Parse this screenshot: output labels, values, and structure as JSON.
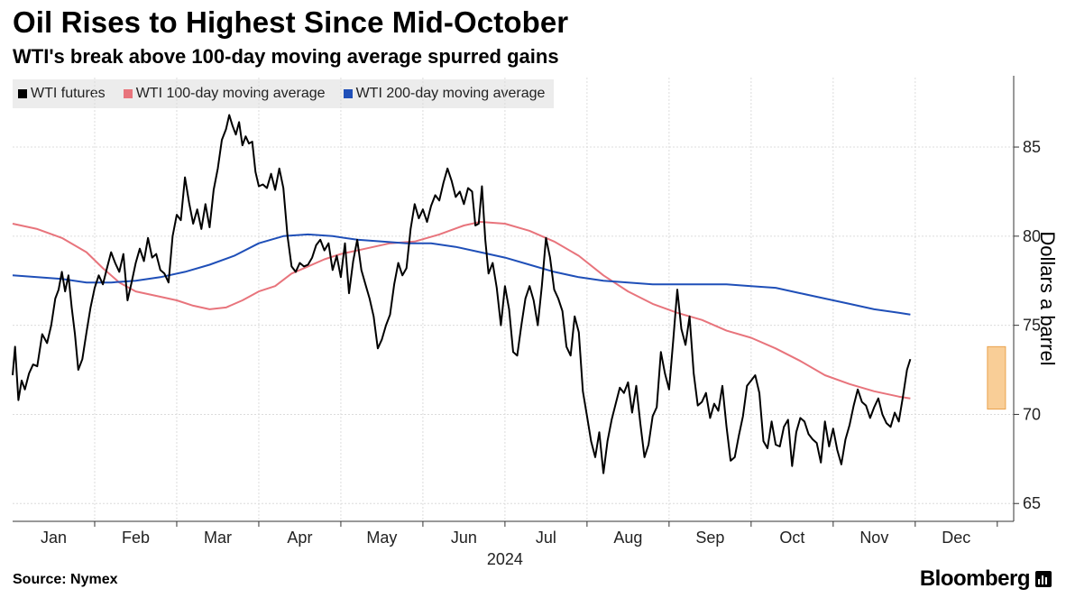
{
  "chart_data": {
    "type": "line",
    "title": "Oil Rises to Highest Since Mid-October",
    "subtitle": "WTI's break above 100-day moving average spurred gains",
    "ylabel": "Dollars a barrel",
    "xlabel": "2024",
    "ylim": [
      64,
      89
    ],
    "y_ticks": [
      65,
      70,
      75,
      80,
      85
    ],
    "x_ticks": [
      "Jan",
      "Feb",
      "Mar",
      "Apr",
      "May",
      "Jun",
      "Jul",
      "Aug",
      "Sep",
      "Oct",
      "Nov",
      "Dec"
    ],
    "x_year_label": "2024",
    "x_range_months": [
      0,
      12.2
    ],
    "legend_position": "top-left",
    "highlight": {
      "x_start_month": 11.88,
      "x_end_month": 12.1,
      "y_low": 70.3,
      "y_high": 73.8,
      "color": "#f7bd74"
    },
    "series": [
      {
        "name": "WTI futures",
        "color": "#000000",
        "points": [
          [
            0.0,
            72.2
          ],
          [
            0.03,
            73.8
          ],
          [
            0.07,
            70.8
          ],
          [
            0.11,
            71.9
          ],
          [
            0.15,
            71.4
          ],
          [
            0.2,
            72.3
          ],
          [
            0.25,
            72.8
          ],
          [
            0.3,
            72.7
          ],
          [
            0.36,
            74.5
          ],
          [
            0.42,
            74.0
          ],
          [
            0.47,
            75.0
          ],
          [
            0.52,
            76.5
          ],
          [
            0.56,
            77.0
          ],
          [
            0.6,
            78.0
          ],
          [
            0.64,
            76.9
          ],
          [
            0.68,
            77.8
          ],
          [
            0.72,
            76.0
          ],
          [
            0.76,
            74.5
          ],
          [
            0.8,
            72.5
          ],
          [
            0.85,
            73.1
          ],
          [
            0.9,
            74.6
          ],
          [
            0.95,
            76.0
          ],
          [
            1.0,
            77.1
          ],
          [
            1.05,
            77.8
          ],
          [
            1.1,
            77.3
          ],
          [
            1.15,
            78.2
          ],
          [
            1.2,
            79.1
          ],
          [
            1.25,
            78.5
          ],
          [
            1.3,
            78.0
          ],
          [
            1.35,
            79.0
          ],
          [
            1.4,
            76.4
          ],
          [
            1.45,
            77.4
          ],
          [
            1.5,
            78.5
          ],
          [
            1.55,
            79.3
          ],
          [
            1.6,
            78.6
          ],
          [
            1.65,
            79.9
          ],
          [
            1.7,
            78.8
          ],
          [
            1.75,
            79.0
          ],
          [
            1.8,
            78.1
          ],
          [
            1.85,
            77.9
          ],
          [
            1.9,
            77.4
          ],
          [
            1.95,
            80.0
          ],
          [
            2.0,
            81.2
          ],
          [
            2.05,
            80.9
          ],
          [
            2.1,
            83.3
          ],
          [
            2.15,
            81.9
          ],
          [
            2.2,
            80.7
          ],
          [
            2.25,
            81.5
          ],
          [
            2.3,
            80.4
          ],
          [
            2.35,
            81.8
          ],
          [
            2.4,
            80.5
          ],
          [
            2.45,
            82.6
          ],
          [
            2.5,
            83.8
          ],
          [
            2.55,
            85.4
          ],
          [
            2.6,
            86.0
          ],
          [
            2.64,
            86.8
          ],
          [
            2.68,
            86.2
          ],
          [
            2.72,
            85.7
          ],
          [
            2.76,
            86.4
          ],
          [
            2.8,
            85.1
          ],
          [
            2.84,
            85.6
          ],
          [
            2.88,
            85.2
          ],
          [
            2.92,
            85.3
          ],
          [
            2.96,
            83.6
          ],
          [
            3.0,
            82.8
          ],
          [
            3.05,
            82.9
          ],
          [
            3.1,
            82.7
          ],
          [
            3.15,
            83.5
          ],
          [
            3.2,
            82.6
          ],
          [
            3.25,
            83.8
          ],
          [
            3.3,
            82.7
          ],
          [
            3.35,
            80.0
          ],
          [
            3.4,
            78.3
          ],
          [
            3.45,
            78.0
          ],
          [
            3.5,
            78.5
          ],
          [
            3.55,
            78.3
          ],
          [
            3.6,
            78.4
          ],
          [
            3.65,
            78.8
          ],
          [
            3.7,
            79.5
          ],
          [
            3.75,
            79.8
          ],
          [
            3.8,
            79.2
          ],
          [
            3.85,
            79.6
          ],
          [
            3.9,
            78.1
          ],
          [
            3.95,
            78.9
          ],
          [
            4.0,
            77.7
          ],
          [
            4.05,
            79.6
          ],
          [
            4.1,
            76.8
          ],
          [
            4.15,
            78.6
          ],
          [
            4.2,
            79.8
          ],
          [
            4.25,
            78.1
          ],
          [
            4.3,
            77.3
          ],
          [
            4.35,
            76.5
          ],
          [
            4.4,
            75.5
          ],
          [
            4.45,
            73.7
          ],
          [
            4.5,
            74.2
          ],
          [
            4.55,
            75.0
          ],
          [
            4.6,
            75.6
          ],
          [
            4.65,
            77.3
          ],
          [
            4.7,
            78.5
          ],
          [
            4.75,
            77.8
          ],
          [
            4.8,
            78.2
          ],
          [
            4.85,
            80.4
          ],
          [
            4.9,
            81.8
          ],
          [
            4.95,
            81.0
          ],
          [
            5.0,
            81.5
          ],
          [
            5.05,
            80.8
          ],
          [
            5.1,
            81.7
          ],
          [
            5.15,
            82.3
          ],
          [
            5.2,
            82.0
          ],
          [
            5.25,
            83.0
          ],
          [
            5.3,
            83.8
          ],
          [
            5.35,
            83.1
          ],
          [
            5.4,
            82.2
          ],
          [
            5.45,
            82.5
          ],
          [
            5.5,
            81.8
          ],
          [
            5.55,
            82.7
          ],
          [
            5.6,
            82.5
          ],
          [
            5.64,
            80.6
          ],
          [
            5.68,
            80.7
          ],
          [
            5.72,
            82.8
          ],
          [
            5.76,
            79.8
          ],
          [
            5.8,
            77.9
          ],
          [
            5.85,
            78.5
          ],
          [
            5.9,
            77.1
          ],
          [
            5.95,
            75.0
          ],
          [
            6.0,
            77.2
          ],
          [
            6.05,
            75.9
          ],
          [
            6.1,
            73.5
          ],
          [
            6.15,
            73.3
          ],
          [
            6.2,
            75.0
          ],
          [
            6.25,
            76.5
          ],
          [
            6.3,
            77.2
          ],
          [
            6.35,
            76.4
          ],
          [
            6.4,
            75.0
          ],
          [
            6.45,
            77.2
          ],
          [
            6.5,
            79.9
          ],
          [
            6.55,
            78.8
          ],
          [
            6.6,
            77.0
          ],
          [
            6.65,
            76.5
          ],
          [
            6.7,
            75.8
          ],
          [
            6.75,
            73.8
          ],
          [
            6.8,
            73.3
          ],
          [
            6.85,
            75.5
          ],
          [
            6.9,
            74.6
          ],
          [
            6.95,
            71.3
          ],
          [
            7.0,
            69.9
          ],
          [
            7.05,
            68.5
          ],
          [
            7.1,
            67.6
          ],
          [
            7.15,
            69.0
          ],
          [
            7.2,
            66.7
          ],
          [
            7.25,
            68.5
          ],
          [
            7.3,
            69.7
          ],
          [
            7.35,
            70.6
          ],
          [
            7.4,
            71.5
          ],
          [
            7.45,
            71.2
          ],
          [
            7.5,
            71.8
          ],
          [
            7.55,
            70.1
          ],
          [
            7.6,
            71.6
          ],
          [
            7.65,
            69.5
          ],
          [
            7.7,
            67.6
          ],
          [
            7.75,
            68.3
          ],
          [
            7.8,
            69.9
          ],
          [
            7.85,
            70.4
          ],
          [
            7.9,
            73.5
          ],
          [
            7.95,
            72.3
          ],
          [
            8.0,
            71.4
          ],
          [
            8.05,
            74.1
          ],
          [
            8.1,
            77.0
          ],
          [
            8.15,
            74.8
          ],
          [
            8.2,
            73.9
          ],
          [
            8.25,
            75.5
          ],
          [
            8.3,
            72.3
          ],
          [
            8.35,
            70.5
          ],
          [
            8.4,
            70.7
          ],
          [
            8.45,
            71.2
          ],
          [
            8.5,
            69.8
          ],
          [
            8.55,
            70.6
          ],
          [
            8.6,
            70.2
          ],
          [
            8.65,
            71.6
          ],
          [
            8.7,
            69.3
          ],
          [
            8.75,
            67.4
          ],
          [
            8.8,
            67.6
          ],
          [
            8.85,
            68.8
          ],
          [
            8.9,
            69.9
          ],
          [
            8.95,
            71.6
          ],
          [
            9.0,
            71.9
          ],
          [
            9.05,
            72.2
          ],
          [
            9.1,
            71.2
          ],
          [
            9.15,
            68.5
          ],
          [
            9.2,
            68.1
          ],
          [
            9.25,
            69.6
          ],
          [
            9.3,
            68.3
          ],
          [
            9.35,
            68.2
          ],
          [
            9.4,
            69.3
          ],
          [
            9.45,
            69.7
          ],
          [
            9.5,
            67.1
          ],
          [
            9.55,
            69.0
          ],
          [
            9.6,
            69.8
          ],
          [
            9.65,
            69.6
          ],
          [
            9.7,
            68.9
          ],
          [
            9.75,
            68.6
          ],
          [
            9.8,
            68.4
          ],
          [
            9.85,
            67.3
          ],
          [
            9.9,
            69.6
          ],
          [
            9.95,
            68.2
          ],
          [
            10.0,
            69.2
          ],
          [
            10.05,
            68.0
          ],
          [
            10.1,
            67.2
          ],
          [
            10.15,
            68.6
          ],
          [
            10.2,
            69.4
          ],
          [
            10.25,
            70.5
          ],
          [
            10.3,
            71.4
          ],
          [
            10.35,
            70.7
          ],
          [
            10.4,
            70.5
          ],
          [
            10.45,
            69.8
          ],
          [
            10.5,
            70.4
          ],
          [
            10.55,
            70.9
          ],
          [
            10.6,
            70.0
          ],
          [
            10.65,
            69.5
          ],
          [
            10.7,
            69.3
          ],
          [
            10.75,
            70.1
          ],
          [
            10.8,
            69.6
          ],
          [
            10.85,
            71.0
          ],
          [
            10.9,
            72.5
          ],
          [
            10.94,
            73.1
          ]
        ]
      },
      {
        "name": "WTI 100-day moving average",
        "color": "#e8747c",
        "points": [
          [
            0.0,
            80.7
          ],
          [
            0.3,
            80.4
          ],
          [
            0.6,
            79.9
          ],
          [
            0.9,
            79.1
          ],
          [
            1.1,
            78.2
          ],
          [
            1.3,
            77.4
          ],
          [
            1.5,
            76.9
          ],
          [
            1.8,
            76.6
          ],
          [
            2.0,
            76.4
          ],
          [
            2.2,
            76.1
          ],
          [
            2.4,
            75.9
          ],
          [
            2.6,
            76.0
          ],
          [
            2.8,
            76.4
          ],
          [
            3.0,
            76.9
          ],
          [
            3.2,
            77.2
          ],
          [
            3.4,
            77.9
          ],
          [
            3.6,
            78.3
          ],
          [
            3.8,
            78.7
          ],
          [
            4.0,
            79.0
          ],
          [
            4.3,
            79.3
          ],
          [
            4.6,
            79.6
          ],
          [
            4.9,
            79.7
          ],
          [
            5.2,
            80.1
          ],
          [
            5.5,
            80.6
          ],
          [
            5.7,
            80.8
          ],
          [
            6.0,
            80.7
          ],
          [
            6.3,
            80.3
          ],
          [
            6.6,
            79.7
          ],
          [
            6.9,
            78.9
          ],
          [
            7.2,
            77.8
          ],
          [
            7.5,
            76.9
          ],
          [
            7.8,
            76.2
          ],
          [
            8.1,
            75.7
          ],
          [
            8.4,
            75.3
          ],
          [
            8.7,
            74.7
          ],
          [
            9.0,
            74.3
          ],
          [
            9.3,
            73.7
          ],
          [
            9.6,
            73.0
          ],
          [
            9.9,
            72.2
          ],
          [
            10.2,
            71.7
          ],
          [
            10.5,
            71.3
          ],
          [
            10.8,
            71.0
          ],
          [
            10.94,
            70.9
          ]
        ]
      },
      {
        "name": "WTI 200-day moving average",
        "color": "#1f4fb8",
        "points": [
          [
            0.0,
            77.8
          ],
          [
            0.3,
            77.7
          ],
          [
            0.6,
            77.6
          ],
          [
            0.9,
            77.4
          ],
          [
            1.2,
            77.4
          ],
          [
            1.5,
            77.5
          ],
          [
            1.8,
            77.7
          ],
          [
            2.1,
            78.0
          ],
          [
            2.4,
            78.4
          ],
          [
            2.7,
            78.9
          ],
          [
            3.0,
            79.6
          ],
          [
            3.3,
            80.0
          ],
          [
            3.6,
            80.1
          ],
          [
            3.9,
            80.0
          ],
          [
            4.2,
            79.8
          ],
          [
            4.5,
            79.7
          ],
          [
            4.8,
            79.6
          ],
          [
            5.1,
            79.6
          ],
          [
            5.4,
            79.4
          ],
          [
            5.7,
            79.1
          ],
          [
            6.0,
            78.8
          ],
          [
            6.3,
            78.4
          ],
          [
            6.6,
            78.0
          ],
          [
            6.9,
            77.7
          ],
          [
            7.2,
            77.5
          ],
          [
            7.5,
            77.4
          ],
          [
            7.8,
            77.3
          ],
          [
            8.1,
            77.3
          ],
          [
            8.4,
            77.3
          ],
          [
            8.7,
            77.3
          ],
          [
            9.0,
            77.2
          ],
          [
            9.3,
            77.1
          ],
          [
            9.6,
            76.8
          ],
          [
            9.9,
            76.5
          ],
          [
            10.2,
            76.2
          ],
          [
            10.5,
            75.9
          ],
          [
            10.8,
            75.7
          ],
          [
            10.94,
            75.6
          ]
        ]
      }
    ]
  },
  "legend": {
    "items": [
      {
        "label": "WTI futures",
        "color": "#000000"
      },
      {
        "label": "WTI 100-day moving average",
        "color": "#e8747c"
      },
      {
        "label": "WTI 200-day moving average",
        "color": "#1f4fb8"
      }
    ]
  },
  "footer": {
    "source": "Source: Nymex",
    "brand": "Bloomberg"
  }
}
